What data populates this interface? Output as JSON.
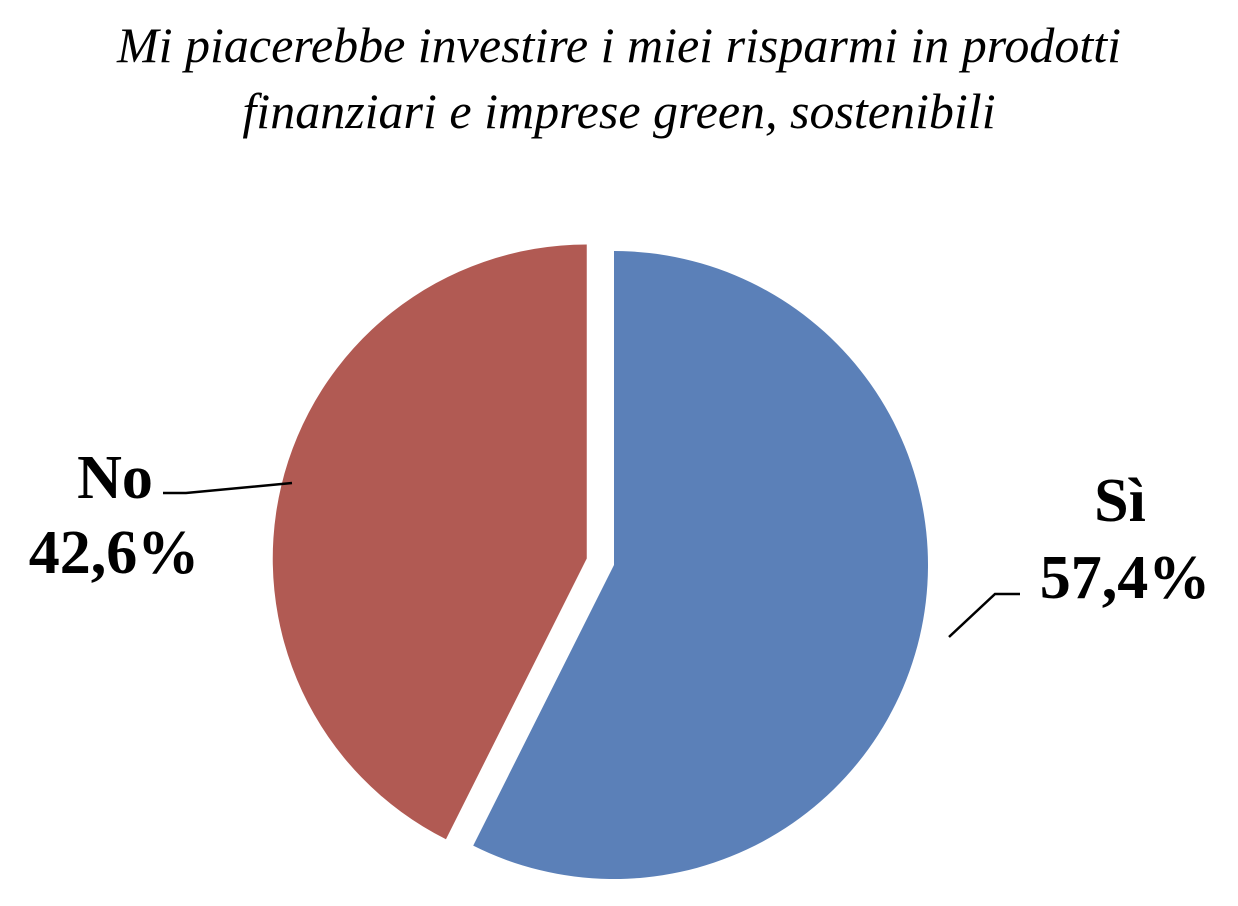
{
  "chart_data": {
    "type": "pie",
    "title": "Mi piacerebbe investire i miei risparmi in prodotti finanziari e imprese green, sostenibili",
    "title_lines": [
      "Mi piacerebbe investire i miei risparmi in prodotti",
      "finanziari e imprese green, sostenibili"
    ],
    "slices": [
      {
        "label": "Sì",
        "value": 57.4,
        "value_label": "57,4%",
        "color": "#5b80b8",
        "exploded": false
      },
      {
        "label": "No",
        "value": 42.6,
        "value_label": "42,6%",
        "color": "#b15a53",
        "exploded": true
      }
    ],
    "start_angle_deg": 0,
    "direction": "clockwise",
    "legend": "none",
    "data_labels": "outside-with-leader-lines"
  }
}
